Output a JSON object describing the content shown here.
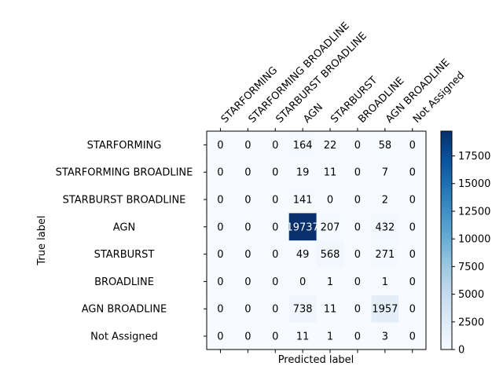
{
  "chart_data": {
    "type": "heatmap",
    "title": "",
    "xlabel": "Predicted label",
    "ylabel": "True label",
    "x_categories": [
      "STARFORMING",
      "STARFORMING BROADLINE",
      "STARBURST BROADLINE",
      "AGN",
      "STARBURST",
      "BROADLINE",
      "AGN BROADLINE",
      "Not Assigned"
    ],
    "y_categories": [
      "STARFORMING",
      "STARFORMING BROADLINE",
      "STARBURST BROADLINE",
      "AGN",
      "STARBURST",
      "BROADLINE",
      "AGN BROADLINE",
      "Not Assigned"
    ],
    "matrix": [
      [
        0,
        0,
        0,
        164,
        22,
        0,
        58,
        0
      ],
      [
        0,
        0,
        0,
        19,
        11,
        0,
        7,
        0
      ],
      [
        0,
        0,
        0,
        141,
        0,
        0,
        2,
        0
      ],
      [
        0,
        0,
        0,
        19737,
        207,
        0,
        432,
        0
      ],
      [
        0,
        0,
        0,
        49,
        568,
        0,
        271,
        0
      ],
      [
        0,
        0,
        0,
        0,
        1,
        0,
        1,
        0
      ],
      [
        0,
        0,
        0,
        738,
        11,
        0,
        1957,
        0
      ],
      [
        0,
        0,
        0,
        11,
        1,
        0,
        3,
        0
      ]
    ],
    "colormap": "Blues",
    "color_min": "#f7fbff",
    "color_max": "#08306b",
    "colorbar_ticks": [
      0,
      2500,
      5000,
      7500,
      10000,
      12500,
      15000,
      17500
    ],
    "colorbar_range": [
      0,
      19737
    ],
    "x_tick_position": "top",
    "grid": false
  }
}
